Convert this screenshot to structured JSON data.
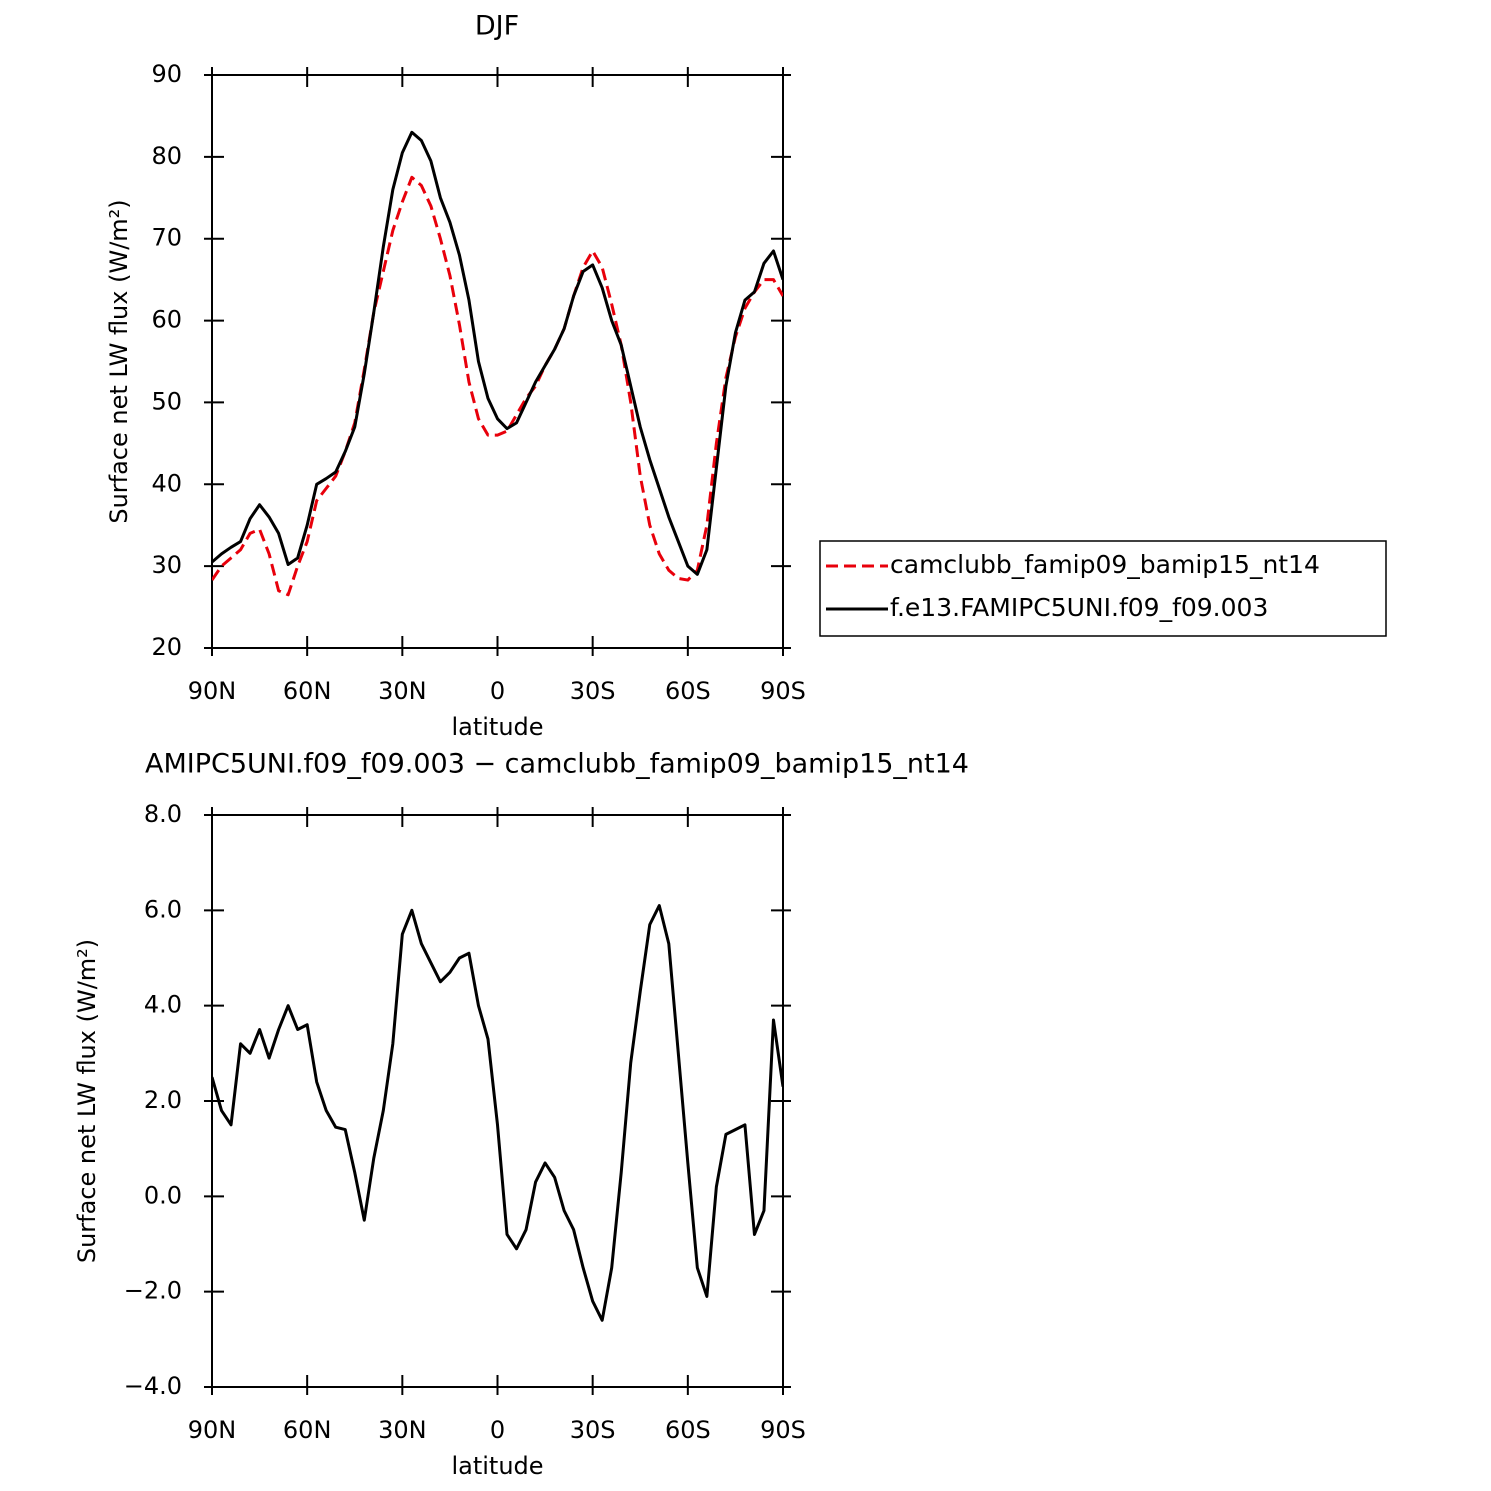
{
  "chart_data": [
    {
      "type": "line",
      "title": "DJF",
      "xlabel": "latitude",
      "ylabel": "Surface net LW flux (W/m²)",
      "x": [
        90,
        87,
        84,
        81,
        78,
        75,
        72,
        69,
        66,
        63,
        60,
        57,
        54,
        51,
        48,
        45,
        42,
        39,
        36,
        33,
        30,
        27,
        24,
        21,
        18,
        15,
        12,
        9,
        6,
        3,
        0,
        -3,
        -6,
        -9,
        -12,
        -15,
        -18,
        -21,
        -24,
        -27,
        -30,
        -33,
        -36,
        -39,
        -42,
        -45,
        -48,
        -51,
        -54,
        -57,
        -60,
        -63,
        -66,
        -69,
        -72,
        -75,
        -78,
        -81,
        -84,
        -87,
        -90
      ],
      "xlim": [
        90,
        -90
      ],
      "xticks": [
        {
          "value": 90,
          "label": "90N"
        },
        {
          "value": 60,
          "label": "60N"
        },
        {
          "value": 30,
          "label": "30N"
        },
        0,
        {
          "value": -30,
          "label": "30S"
        },
        {
          "value": -60,
          "label": "60S"
        },
        {
          "value": -90,
          "label": "90S"
        }
      ],
      "ylim": [
        20,
        90
      ],
      "yticks": [
        20,
        30,
        40,
        50,
        60,
        70,
        80,
        90
      ],
      "legend": "right",
      "series": [
        {
          "name": "camclubb_famip09_bamip15_nt14",
          "color": "#e8000b",
          "linestyle": "dashed",
          "values": [
            28.3,
            30,
            31,
            32,
            34,
            34.5,
            31.5,
            27,
            26.5,
            30,
            33,
            38,
            39.5,
            41,
            44,
            47.5,
            54,
            61,
            66,
            71,
            74.5,
            77.5,
            76.5,
            74,
            70,
            65.5,
            59.5,
            52.5,
            48,
            46,
            46,
            46.5,
            48.5,
            50.5,
            52,
            54.5,
            56.5,
            59,
            63,
            66.5,
            68.5,
            66.5,
            62,
            57,
            50,
            41,
            35,
            31.5,
            29.5,
            28.5,
            28.3,
            29.5,
            35,
            45,
            53,
            58,
            61.5,
            63.5,
            65,
            65,
            63
          ]
        },
        {
          "name": "f.e13.FAMIPC5UNI.f09_f09.003",
          "color": "#000000",
          "linestyle": "solid",
          "values": [
            30.5,
            31.5,
            32.3,
            33,
            35.8,
            37.5,
            36,
            34,
            30.2,
            31,
            35,
            40,
            40.7,
            41.5,
            44,
            47,
            53.5,
            61,
            69,
            76,
            80.5,
            83,
            82,
            79.5,
            75,
            72,
            68,
            62.5,
            55,
            50.5,
            48,
            46.8,
            47.5,
            50,
            52.5,
            54.5,
            56.5,
            59,
            63,
            66,
            66.8,
            64,
            60,
            57,
            52,
            47,
            43,
            39.5,
            36,
            33,
            30,
            29,
            32,
            42,
            52,
            58.5,
            62.5,
            63.5,
            67,
            68.5,
            65
          ]
        }
      ]
    },
    {
      "type": "line",
      "title": "AMIPC5UNI.f09_f09.003 − camclubb_famip09_bamip15_nt14",
      "xlabel": "latitude",
      "ylabel": "Surface net LW flux (W/m²)",
      "x": [
        90,
        87,
        84,
        81,
        78,
        75,
        72,
        69,
        66,
        63,
        60,
        57,
        54,
        51,
        48,
        45,
        42,
        39,
        36,
        33,
        30,
        27,
        24,
        21,
        18,
        15,
        12,
        9,
        6,
        3,
        0,
        -3,
        -6,
        -9,
        -12,
        -15,
        -18,
        -21,
        -24,
        -27,
        -30,
        -33,
        -36,
        -39,
        -42,
        -45,
        -48,
        -51,
        -54,
        -57,
        -60,
        -63,
        -66,
        -69,
        -72,
        -75,
        -78,
        -81,
        -84,
        -87,
        -90
      ],
      "xlim": [
        90,
        -90
      ],
      "xticks": [
        {
          "value": 90,
          "label": "90N"
        },
        {
          "value": 60,
          "label": "60N"
        },
        {
          "value": 30,
          "label": "30N"
        },
        0,
        {
          "value": -30,
          "label": "30S"
        },
        {
          "value": -60,
          "label": "60S"
        },
        {
          "value": -90,
          "label": "90S"
        }
      ],
      "ylim": [
        -4,
        8
      ],
      "yticks": [
        {
          "value": -4,
          "label": "−4.0"
        },
        {
          "value": -2,
          "label": "−2.0"
        },
        {
          "value": 0,
          "label": "0.0"
        },
        {
          "value": 2,
          "label": "2.0"
        },
        {
          "value": 4,
          "label": "4.0"
        },
        {
          "value": 6,
          "label": "6.0"
        },
        {
          "value": 8,
          "label": "8.0"
        }
      ],
      "color": "#000000",
      "values": [
        2.5,
        1.8,
        1.5,
        3.2,
        3.0,
        3.5,
        2.9,
        3.5,
        4.0,
        3.5,
        3.6,
        2.4,
        1.8,
        1.45,
        1.4,
        0.5,
        -0.5,
        0.8,
        1.8,
        3.2,
        5.5,
        6.0,
        5.3,
        4.9,
        4.5,
        4.7,
        5.0,
        5.1,
        4.0,
        3.3,
        1.5,
        -0.8,
        -1.1,
        -0.7,
        0.3,
        0.7,
        0.4,
        -0.3,
        -0.7,
        -1.5,
        -2.2,
        -2.6,
        -1.5,
        0.5,
        2.8,
        4.3,
        5.7,
        6.1,
        5.3,
        3.0,
        0.7,
        -1.5,
        -2.1,
        0.2,
        1.3,
        1.4,
        1.5,
        -0.8,
        -0.3,
        3.7,
        2.3
      ]
    }
  ]
}
